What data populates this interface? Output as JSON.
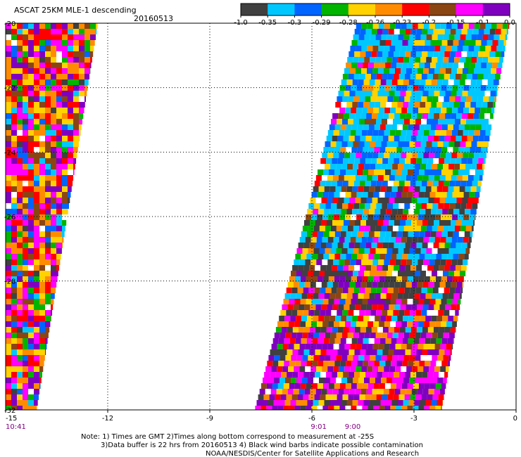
{
  "header": {
    "title": "ASCAT 25KM MLE-1 descending",
    "date": "20160513"
  },
  "colorbar": {
    "colors": [
      "#404040",
      "#00c8ff",
      "#0064ff",
      "#00b400",
      "#ffd200",
      "#ff8c00",
      "#ff0000",
      "#8b4513",
      "#ff00ff",
      "#8000c0"
    ],
    "labels": [
      "-1.0",
      "-0.35",
      "-0.3",
      "-0.29",
      "-0.28",
      "-0.26",
      "-0.23",
      "-0.2",
      "-0.15",
      "-0.1",
      "0.0"
    ]
  },
  "map": {
    "lon_range": [
      -15,
      0
    ],
    "lat_range": [
      -32,
      -20
    ],
    "x_ticks": [
      {
        "value": -15,
        "label": "-15"
      },
      {
        "value": -12,
        "label": "-12"
      },
      {
        "value": -9,
        "label": "-9"
      },
      {
        "value": -6,
        "label": "-6"
      },
      {
        "value": -3,
        "label": "-3"
      },
      {
        "value": 0,
        "label": "0"
      }
    ],
    "y_ticks": [
      {
        "value": -20,
        "label": "-20"
      },
      {
        "value": -22,
        "label": "-22"
      },
      {
        "value": -24,
        "label": "-24"
      },
      {
        "value": -26,
        "label": "-26"
      },
      {
        "value": -28,
        "label": "-28"
      },
      {
        "value": -32,
        "label": "-32"
      }
    ],
    "time_labels": [
      {
        "lon": -15,
        "label": "10:41"
      },
      {
        "lon": -5.8,
        "label": "9:01"
      },
      {
        "lon": -4.8,
        "label": "9:00"
      }
    ],
    "swaths": [
      {
        "name": "west-swath",
        "lon_left_top": -15,
        "lon_right_top": -12.3,
        "lon_left_bottom": -15,
        "lon_right_bottom": -14.1,
        "lat_top": -20,
        "lat_bottom": -32
      },
      {
        "name": "east-swath",
        "lon_left_top": -4.7,
        "lon_right_top": -0.2,
        "lon_left_bottom": -7.7,
        "lon_right_bottom": -2.2,
        "lat_top": -20,
        "lat_bottom": -32
      }
    ]
  },
  "notes": [
    "Note: 1) Times are GMT 2)Times along bottom correspond to measurement at -25S",
    "3)Data buffer is 22 hrs from 20160513 4) Black wind barbs indicate possible contamination",
    "NOAA/NESDIS/Center for Satellite Applications and Research"
  ]
}
